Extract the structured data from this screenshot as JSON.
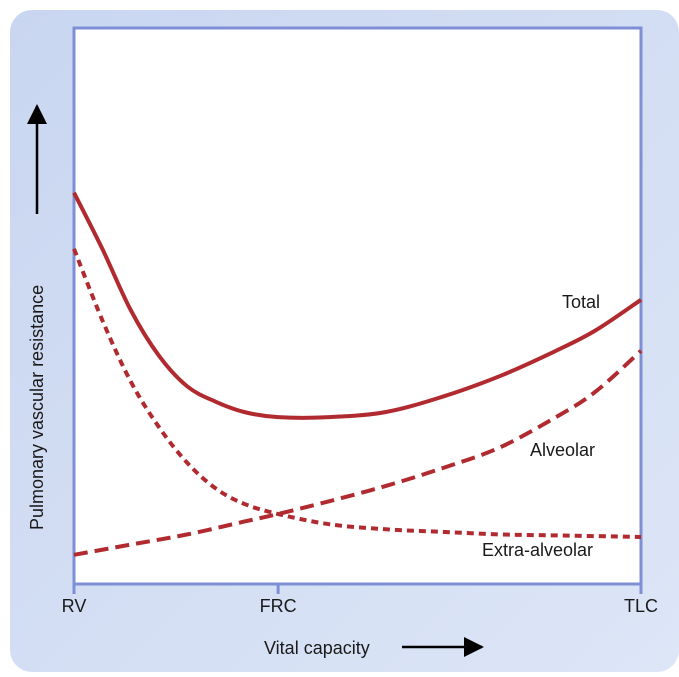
{
  "chart_data": {
    "type": "line",
    "title": "",
    "xlabel": "Vital capacity",
    "ylabel": "Pulmonary vascular resistance",
    "x_ticks": [
      "RV",
      "FRC",
      "TLC"
    ],
    "x_tick_positions": [
      0,
      0.36,
      1
    ],
    "xlim": [
      0,
      1
    ],
    "ylim": [
      0,
      1
    ],
    "grid": false,
    "legend": "direct labels",
    "series": [
      {
        "name": "Total",
        "style": "solid",
        "x": [
          0,
          0.05,
          0.1,
          0.15,
          0.2,
          0.25,
          0.3,
          0.36,
          0.45,
          0.55,
          0.65,
          0.75,
          0.85,
          0.92,
          1.0
        ],
        "y": [
          0.73,
          0.62,
          0.5,
          0.41,
          0.35,
          0.32,
          0.3,
          0.29,
          0.29,
          0.3,
          0.33,
          0.37,
          0.42,
          0.46,
          0.52
        ]
      },
      {
        "name": "Alveolar",
        "style": "dashed",
        "x": [
          0,
          0.1,
          0.2,
          0.3,
          0.36,
          0.45,
          0.55,
          0.65,
          0.75,
          0.85,
          0.92,
          1.0
        ],
        "y": [
          0.02,
          0.04,
          0.06,
          0.085,
          0.1,
          0.125,
          0.155,
          0.19,
          0.23,
          0.29,
          0.34,
          0.42
        ]
      },
      {
        "name": "Extra-alveolar",
        "style": "dotted",
        "x": [
          0,
          0.05,
          0.1,
          0.15,
          0.2,
          0.25,
          0.3,
          0.36,
          0.45,
          0.55,
          0.65,
          0.75,
          0.85,
          1.0
        ],
        "y": [
          0.62,
          0.48,
          0.36,
          0.27,
          0.2,
          0.15,
          0.12,
          0.1,
          0.08,
          0.07,
          0.065,
          0.06,
          0.058,
          0.055
        ]
      }
    ],
    "line_color": "#b02a30",
    "frame_color": "#7e8fd6",
    "background_color": "#ccd8f0"
  }
}
